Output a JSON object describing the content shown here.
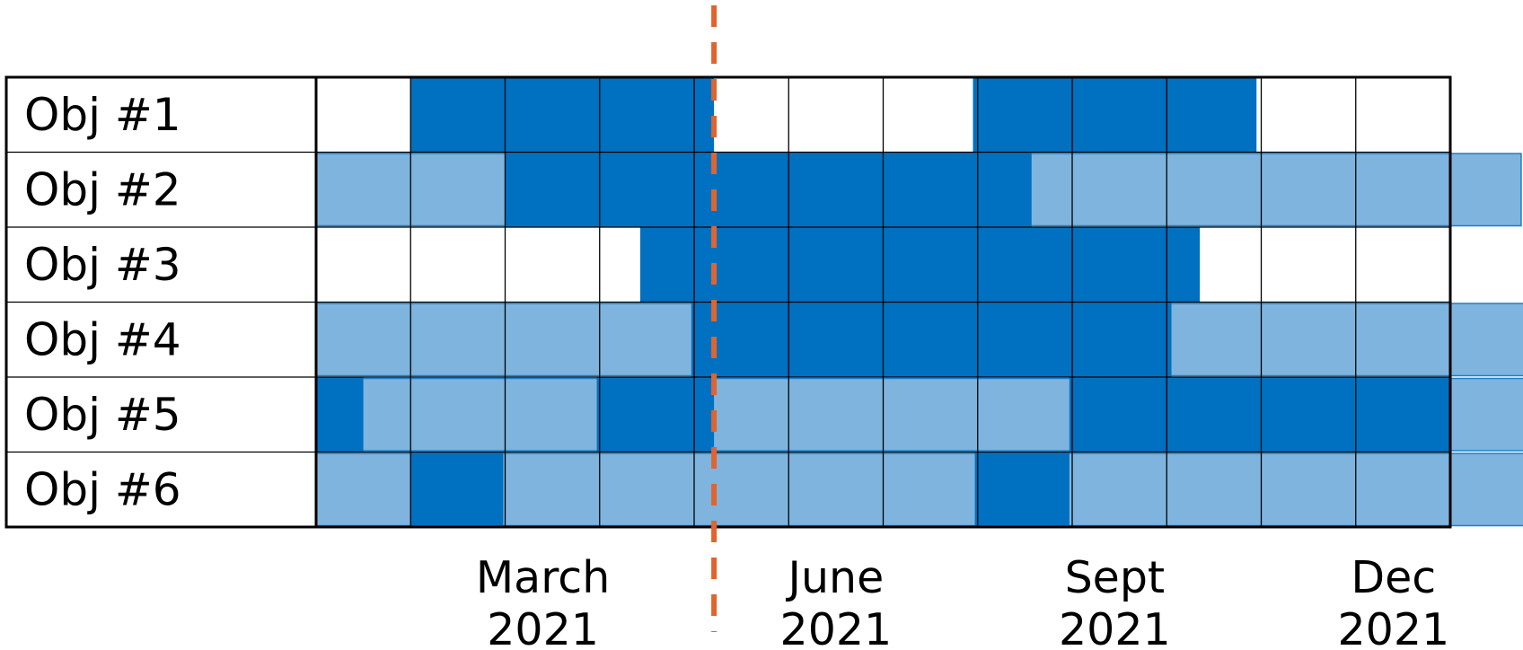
{
  "colors": {
    "dark": "#0070c0",
    "light": "#7fb4de",
    "light_stroke": "#1a7fc9",
    "grid": "#000000",
    "today_line": "#e0642d"
  },
  "rows": [
    {
      "label": "Obj #1",
      "light_segments": [],
      "dark_segments": [
        [
          1,
          4.21
        ],
        [
          6.95,
          9.95
        ]
      ]
    },
    {
      "label": "Obj #2",
      "light_segments": [
        [
          0,
          12.75
        ]
      ],
      "dark_segments": [
        [
          2,
          7.57
        ]
      ]
    },
    {
      "label": "Obj #3",
      "light_segments": [],
      "dark_segments": [
        [
          3.43,
          9.35
        ]
      ]
    },
    {
      "label": "Obj #4",
      "light_segments": [
        [
          0,
          12.82
        ]
      ],
      "dark_segments": [
        [
          3.97,
          9.05
        ]
      ]
    },
    {
      "label": "Obj #5",
      "light_segments": [
        [
          0,
          12.82
        ]
      ],
      "dark_segments": [
        [
          0,
          0.5
        ],
        [
          2.97,
          4.21
        ],
        [
          7.97,
          12
        ]
      ]
    },
    {
      "label": "Obj #6",
      "light_segments": [
        [
          0,
          12.82
        ]
      ],
      "dark_segments": [
        [
          1,
          1.98
        ],
        [
          6.97,
          7.97
        ]
      ]
    }
  ],
  "months_in_grid": 12,
  "today_marker_month": 4.21,
  "x_axis_labels": [
    {
      "line1": "March",
      "line2": "2021",
      "month": 2.4
    },
    {
      "line1": "June",
      "line2": "2021",
      "month": 5.5
    },
    {
      "line1": "Sept",
      "line2": "2021",
      "month": 8.45
    },
    {
      "line1": "Dec",
      "line2": "2021",
      "month": 11.4
    }
  ]
}
